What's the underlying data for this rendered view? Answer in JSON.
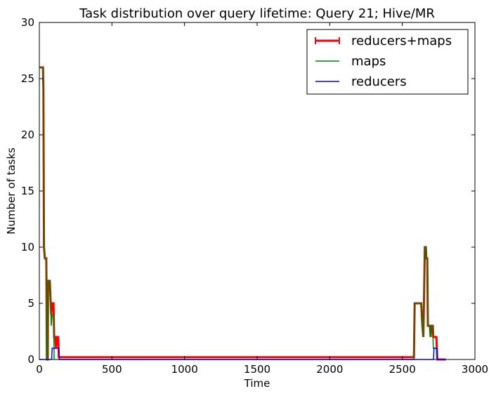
{
  "chart_data": {
    "type": "line",
    "title": "Task distribution over query lifetime: Query 21; Hive/MR",
    "xlabel": "Time",
    "ylabel": "Number of tasks",
    "xlim": [
      0,
      3000
    ],
    "ylim": [
      0,
      30
    ],
    "xticks": [
      0,
      500,
      1000,
      1500,
      2000,
      2500,
      3000
    ],
    "yticks": [
      0,
      5,
      10,
      15,
      20,
      25,
      30
    ],
    "grid": false,
    "legend_position": "top-right",
    "series": [
      {
        "name": "reducers+maps",
        "color": "#ff0000",
        "points": [
          [
            0,
            26
          ],
          [
            25,
            26
          ],
          [
            28,
            24
          ],
          [
            32,
            10
          ],
          [
            38,
            9
          ],
          [
            48,
            9
          ],
          [
            52,
            0
          ],
          [
            58,
            0
          ],
          [
            60,
            7
          ],
          [
            72,
            7
          ],
          [
            75,
            6
          ],
          [
            82,
            4
          ],
          [
            88,
            5
          ],
          [
            98,
            5
          ],
          [
            102,
            2
          ],
          [
            110,
            2
          ],
          [
            115,
            1
          ],
          [
            120,
            2
          ],
          [
            130,
            2
          ],
          [
            134,
            0.2
          ],
          [
            2580,
            0.2
          ],
          [
            2585,
            5
          ],
          [
            2630,
            5
          ],
          [
            2638,
            3
          ],
          [
            2645,
            2
          ],
          [
            2650,
            6
          ],
          [
            2655,
            10
          ],
          [
            2662,
            10
          ],
          [
            2665,
            9
          ],
          [
            2672,
            9
          ],
          [
            2676,
            3
          ],
          [
            2690,
            3
          ],
          [
            2695,
            2
          ],
          [
            2700,
            3
          ],
          [
            2710,
            3
          ],
          [
            2713,
            2
          ],
          [
            2735,
            2
          ],
          [
            2740,
            0
          ],
          [
            2800,
            0
          ]
        ]
      },
      {
        "name": "maps",
        "color": "#008000",
        "points": [
          [
            0,
            26
          ],
          [
            25,
            26
          ],
          [
            28,
            24
          ],
          [
            32,
            10
          ],
          [
            38,
            9
          ],
          [
            48,
            9
          ],
          [
            52,
            0
          ],
          [
            58,
            0
          ],
          [
            60,
            7
          ],
          [
            72,
            7
          ],
          [
            75,
            6
          ],
          [
            82,
            3
          ],
          [
            88,
            4
          ],
          [
            98,
            4
          ],
          [
            102,
            0
          ],
          [
            2580,
            0
          ],
          [
            2585,
            5
          ],
          [
            2630,
            5
          ],
          [
            2638,
            3
          ],
          [
            2645,
            2
          ],
          [
            2650,
            6
          ],
          [
            2655,
            10
          ],
          [
            2662,
            10
          ],
          [
            2665,
            9
          ],
          [
            2672,
            9
          ],
          [
            2676,
            3
          ],
          [
            2690,
            3
          ],
          [
            2695,
            2
          ],
          [
            2700,
            3
          ],
          [
            2710,
            3
          ],
          [
            2713,
            1
          ],
          [
            2735,
            1
          ],
          [
            2740,
            0
          ],
          [
            2800,
            0
          ]
        ]
      },
      {
        "name": "reducers",
        "color": "#0000ff",
        "points": [
          [
            0,
            0
          ],
          [
            85,
            0
          ],
          [
            88,
            1
          ],
          [
            135,
            1
          ],
          [
            138,
            0
          ],
          [
            2715,
            0
          ],
          [
            2718,
            1
          ],
          [
            2740,
            1
          ],
          [
            2743,
            0
          ],
          [
            2800,
            0
          ]
        ]
      }
    ]
  }
}
